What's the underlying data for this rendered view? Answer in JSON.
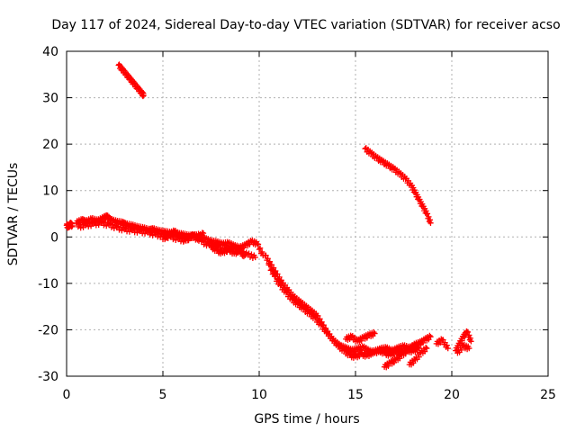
{
  "chart_data": {
    "type": "scatter",
    "title": "Day 117 of 2024, Sidereal Day-to-day VTEC variation (SDTVAR) for receiver acso",
    "xlabel": "GPS time / hours",
    "ylabel": "SDTVAR / TECUs",
    "xlim": [
      0,
      25
    ],
    "ylim": [
      -30,
      40
    ],
    "xticks": [
      0,
      5,
      10,
      15,
      20,
      25
    ],
    "yticks": [
      -30,
      -20,
      -10,
      0,
      10,
      20,
      30,
      40
    ],
    "grid": true,
    "marker": "+",
    "series": [
      {
        "name": "SDTVAR",
        "color": "#ff0000",
        "tracks": [
          {
            "x": [
              0.0,
              0.1,
              0.2,
              0.3
            ],
            "y": [
              2.5,
              2.2,
              2.8,
              2.4
            ]
          },
          {
            "x": [
              0.5,
              0.8,
              1.0,
              1.3,
              1.6,
              1.9,
              2.1,
              2.3,
              2.6,
              2.9,
              3.1,
              3.4,
              3.7,
              4.0,
              4.3,
              4.5,
              4.8,
              5.1,
              5.4,
              5.7,
              6.0,
              6.3,
              6.6,
              6.9,
              7.2,
              7.5,
              7.8,
              8.1,
              8.4,
              8.7,
              9.0,
              9.3,
              9.6,
              9.9,
              10.2
            ],
            "y": [
              3.0,
              3.6,
              3.2,
              3.8,
              3.4,
              4.0,
              4.4,
              3.6,
              3.2,
              3.0,
              2.6,
              2.4,
              2.0,
              1.8,
              1.4,
              1.6,
              1.2,
              1.0,
              0.8,
              0.6,
              0.5,
              0.2,
              0.0,
              0.4,
              -0.5,
              -1.0,
              -1.2,
              -1.6,
              -1.4,
              -2.0,
              -2.4,
              -1.8,
              -1.0,
              -1.5,
              -4.0
            ]
          },
          {
            "x": [
              0.6,
              1.0,
              1.4,
              1.8,
              2.2,
              2.6,
              3.0,
              3.4,
              3.8,
              4.2,
              4.6,
              5.0,
              5.4,
              5.8,
              6.2,
              6.6,
              7.0,
              7.4,
              7.8,
              8.2,
              8.6,
              9.0,
              9.4,
              9.8
            ],
            "y": [
              2.2,
              2.5,
              2.8,
              3.0,
              2.6,
              2.0,
              1.6,
              1.4,
              1.2,
              1.0,
              0.5,
              0.2,
              0.0,
              -0.5,
              -0.8,
              0.5,
              -1.0,
              -1.8,
              -2.2,
              -3.0,
              -2.6,
              -3.2,
              -3.8,
              -4.4
            ]
          },
          {
            "x": [
              5.0,
              5.3,
              5.6,
              5.9,
              6.2,
              6.5,
              6.8,
              7.1
            ],
            "y": [
              -0.5,
              0.5,
              1.2,
              0.2,
              -0.8,
              0.4,
              -0.6,
              0.8
            ]
          },
          {
            "x": [
              7.5,
              7.8,
              8.1,
              8.4,
              8.7,
              9.0,
              9.2
            ],
            "y": [
              -2.0,
              -3.0,
              -3.4,
              -2.6,
              -3.6,
              -2.8,
              -4.2
            ]
          },
          {
            "x": [
              10.3,
              10.6,
              10.9,
              11.2,
              11.5,
              11.8,
              12.1,
              12.4,
              12.7,
              13.0,
              13.3,
              13.6,
              13.9,
              14.2,
              14.5,
              14.8,
              15.1,
              15.4,
              15.7,
              16.0,
              16.3,
              16.6,
              16.9,
              17.2,
              17.5,
              17.8,
              18.1,
              18.4
            ],
            "y": [
              -4.0,
              -6.0,
              -8.0,
              -10.0,
              -11.5,
              -13.0,
              -14.0,
              -15.0,
              -16.0,
              -17.0,
              -19.0,
              -21.0,
              -22.5,
              -23.5,
              -24.0,
              -24.5,
              -24.2,
              -23.8,
              -24.6,
              -25.0,
              -24.2,
              -24.0,
              -24.6,
              -24.0,
              -23.6,
              -24.0,
              -23.2,
              -22.8
            ]
          },
          {
            "x": [
              10.5,
              10.8,
              11.1,
              11.4,
              11.7,
              12.0,
              12.3,
              12.6,
              12.9,
              13.2,
              13.5,
              13.8,
              14.1,
              14.4,
              14.7,
              15.0,
              15.3,
              15.6,
              15.9,
              16.2,
              16.5,
              16.8,
              17.1,
              17.4,
              17.7,
              18.0,
              18.3
            ],
            "y": [
              -6.0,
              -8.5,
              -10.5,
              -12.0,
              -13.5,
              -14.5,
              -15.5,
              -16.5,
              -17.5,
              -19.0,
              -20.5,
              -22.0,
              -23.5,
              -24.5,
              -25.5,
              -25.8,
              -25.2,
              -25.6,
              -24.8,
              -24.4,
              -25.0,
              -25.4,
              -24.8,
              -25.0,
              -24.4,
              -24.6,
              -24.0
            ]
          },
          {
            "x": [
              14.5,
              14.8,
              15.1,
              15.4,
              15.7,
              16.0
            ],
            "y": [
              -22.0,
              -21.5,
              -22.5,
              -21.8,
              -21.2,
              -20.8
            ]
          },
          {
            "x": [
              16.5,
              16.8,
              17.1,
              17.4,
              17.7,
              18.0,
              18.3,
              18.6,
              18.9
            ],
            "y": [
              -28.0,
              -27.2,
              -26.5,
              -25.5,
              -24.5,
              -23.8,
              -23.0,
              -22.2,
              -21.5
            ]
          },
          {
            "x": [
              17.8,
              18.1,
              18.4,
              18.7
            ],
            "y": [
              -27.5,
              -26.5,
              -25.0,
              -24.0
            ]
          },
          {
            "x": [
              19.2,
              19.5,
              19.8
            ],
            "y": [
              -23.0,
              -22.2,
              -24.0
            ]
          },
          {
            "x": [
              20.2,
              20.4,
              20.6,
              20.8,
              21.0
            ],
            "y": [
              -24.5,
              -23.0,
              -21.5,
              -20.5,
              -22.5
            ]
          },
          {
            "x": [
              20.3,
              20.6,
              20.9
            ],
            "y": [
              -25.0,
              -23.5,
              -24.0
            ]
          },
          {
            "x": [
              2.7,
              2.9,
              3.1,
              3.3,
              3.5,
              3.7,
              3.9,
              4.0
            ],
            "y": [
              37.0,
              36.0,
              35.0,
              34.0,
              33.0,
              32.0,
              31.0,
              30.5
            ]
          },
          {
            "x": [
              15.5,
              15.8,
              16.1,
              16.4,
              16.7,
              17.0,
              17.3,
              17.6,
              17.9,
              18.1,
              18.3,
              18.5,
              18.7,
              18.9
            ],
            "y": [
              19.0,
              18.0,
              17.0,
              16.2,
              15.4,
              14.6,
              13.6,
              12.5,
              11.0,
              9.5,
              8.0,
              6.5,
              5.0,
              3.0
            ]
          }
        ]
      }
    ]
  }
}
